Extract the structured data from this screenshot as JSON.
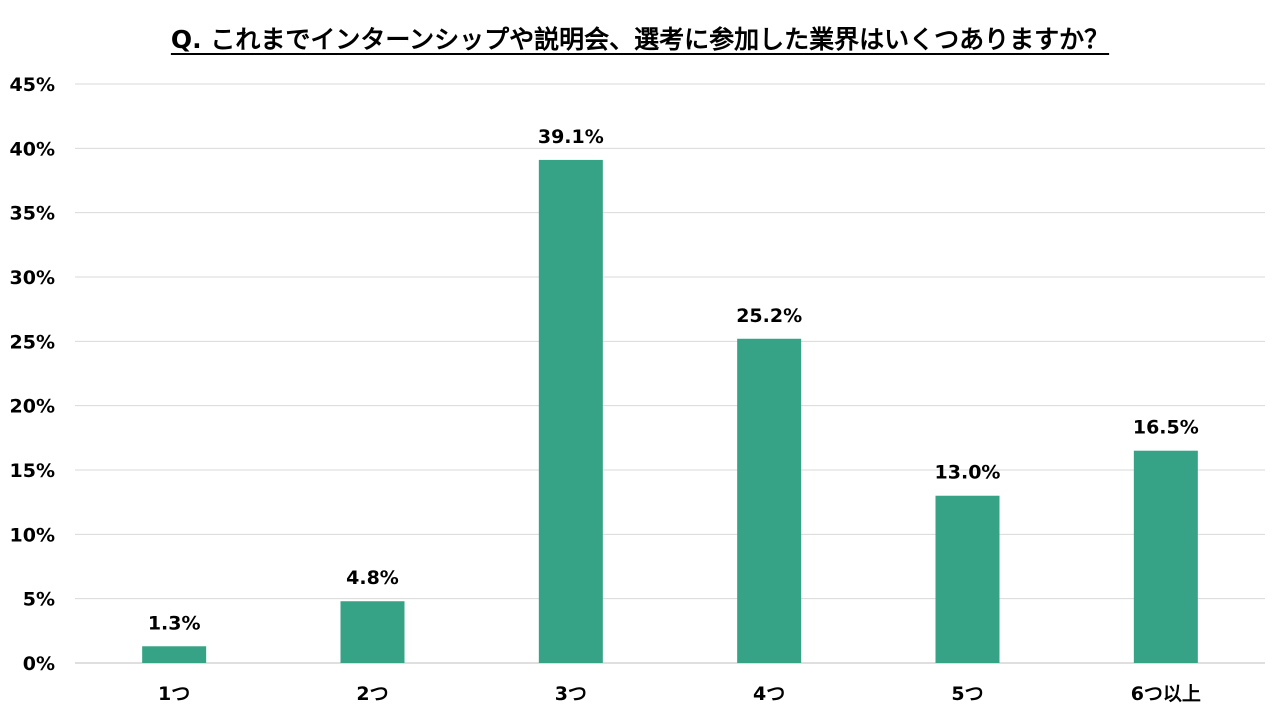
{
  "chart_data": {
    "type": "bar",
    "title": "Q. これまでインターンシップや説明会、選考に参加した業界はいくつありますか？",
    "categories": [
      "1つ",
      "2つ",
      "3つ",
      "4つ",
      "5つ",
      "6つ以上"
    ],
    "values": [
      1.3,
      4.8,
      39.1,
      25.2,
      13.0,
      16.5
    ],
    "value_labels": [
      "1.3%",
      "4.8%",
      "39.1%",
      "25.2%",
      "13.0%",
      "16.5%"
    ],
    "ylim": [
      0,
      45
    ],
    "y_ticks": [
      0,
      5,
      10,
      15,
      20,
      25,
      30,
      35,
      40,
      45
    ],
    "y_tick_labels": [
      "0%",
      "5%",
      "10%",
      "15%",
      "20%",
      "25%",
      "30%",
      "35%",
      "40%",
      "45%"
    ],
    "xlabel": "",
    "ylabel": "",
    "grid": true,
    "legend": "none",
    "colors": {
      "bar": "#36a386",
      "grid": "#d9d9d9",
      "axis": "#bfbfbf",
      "text": "#000000"
    }
  }
}
